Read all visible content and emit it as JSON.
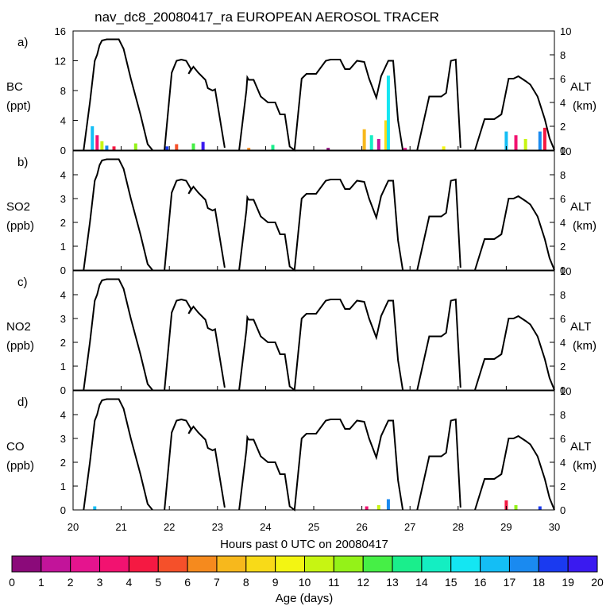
{
  "title": "nav_dc8_20080417_ra EUROPEAN AEROSOL TRACER",
  "chart_data": [
    {
      "type": "area",
      "panel_letter": "a)",
      "ylabel_left": [
        "BC",
        "(ppt)"
      ],
      "ylabel_right": [
        "ALT",
        "(km)"
      ],
      "ylim_left": [
        0,
        16
      ],
      "yticks_left": [
        0,
        4,
        8,
        12,
        16
      ],
      "tracer_values": [
        [
          20.4,
          3.2
        ],
        [
          20.5,
          2.0
        ],
        [
          20.6,
          1.2
        ],
        [
          20.7,
          0.6
        ],
        [
          20.85,
          0.5
        ],
        [
          21.3,
          0.9
        ],
        [
          21.95,
          0.5
        ],
        [
          22.15,
          0.8
        ],
        [
          22.5,
          0.9
        ],
        [
          22.7,
          1.1
        ],
        [
          23.65,
          0.3
        ],
        [
          24.15,
          0.7
        ],
        [
          25.3,
          0.3
        ],
        [
          26.05,
          2.8
        ],
        [
          26.2,
          2.0
        ],
        [
          26.35,
          1.5
        ],
        [
          26.5,
          4.0
        ],
        [
          26.55,
          10.0
        ],
        [
          26.9,
          0.3
        ],
        [
          27.7,
          0.5
        ],
        [
          29.0,
          2.5
        ],
        [
          29.2,
          2.0
        ],
        [
          29.4,
          1.5
        ],
        [
          29.7,
          2.5
        ],
        [
          29.8,
          3.0
        ]
      ]
    },
    {
      "type": "area",
      "panel_letter": "b)",
      "ylabel_left": [
        "SO2",
        "(ppb)"
      ],
      "ylabel_right": [
        "ALT",
        "(km)"
      ],
      "ylim_left": [
        0,
        5
      ],
      "yticks_left": [
        0,
        1,
        2,
        3,
        4
      ],
      "tracer_values": []
    },
    {
      "type": "area",
      "panel_letter": "c)",
      "ylabel_left": [
        "NO2",
        "(ppb)"
      ],
      "ylabel_right": [
        "ALT",
        "(km)"
      ],
      "ylim_left": [
        0,
        5
      ],
      "yticks_left": [
        0,
        1,
        2,
        3,
        4
      ],
      "tracer_values": []
    },
    {
      "type": "area",
      "panel_letter": "d)",
      "ylabel_left": [
        "CO",
        "(ppb)"
      ],
      "ylabel_right": [
        "ALT",
        "(km)"
      ],
      "ylim_left": [
        0,
        5
      ],
      "yticks_left": [
        0,
        1,
        2,
        3,
        4
      ],
      "tracer_values": [
        [
          20.45,
          0.15
        ],
        [
          26.1,
          0.15
        ],
        [
          26.35,
          0.2
        ],
        [
          26.55,
          0.45
        ],
        [
          29.0,
          0.4
        ],
        [
          29.2,
          0.2
        ],
        [
          29.7,
          0.15
        ]
      ]
    }
  ],
  "altitude": {
    "ylim": [
      0,
      10
    ],
    "yticks": [
      0,
      2,
      4,
      6,
      8,
      10
    ],
    "x": [
      20.0,
      20.22,
      20.35,
      20.45,
      20.5,
      20.55,
      20.6,
      20.7,
      20.95,
      21.05,
      21.2,
      21.4,
      21.55,
      21.65,
      21.8,
      21.9,
      22.05,
      22.15,
      22.25,
      22.35,
      22.45,
      22.4,
      22.5,
      22.6,
      22.75,
      22.8,
      22.9,
      22.95,
      23.15,
      23.3,
      23.45,
      23.6,
      23.62,
      23.65,
      23.75,
      23.9,
      24.05,
      24.2,
      24.3,
      24.4,
      24.5,
      24.6,
      24.75,
      24.85,
      25.05,
      25.25,
      25.35,
      25.55,
      25.65,
      25.75,
      25.9,
      26.05,
      26.15,
      26.3,
      26.4,
      26.55,
      26.65,
      26.75,
      26.85,
      26.95,
      27.15,
      27.4,
      27.65,
      27.75,
      27.85,
      27.95,
      28.05,
      28.15,
      28.35,
      28.55,
      28.75,
      28.9,
      29.05,
      29.15,
      29.25,
      29.4,
      29.5,
      29.65,
      29.8,
      29.9,
      30.0
    ],
    "y": [
      null,
      0,
      4,
      7.5,
      8,
      8.8,
      9.2,
      9.3,
      9.3,
      8.5,
      6,
      3,
      0.5,
      0,
      null,
      0,
      6.5,
      7.5,
      7.6,
      7.5,
      6.8,
      6.4,
      7,
      6.5,
      5.9,
      5.2,
      5.0,
      5.1,
      0.2,
      null,
      0,
      5,
      6.1,
      5.9,
      5.9,
      4.5,
      4.0,
      4.0,
      3.0,
      3.0,
      0.3,
      0,
      6.0,
      6.4,
      6.4,
      7.5,
      7.6,
      7.6,
      6.8,
      6.8,
      7.5,
      7.4,
      6.0,
      4.4,
      6.2,
      7.5,
      7.5,
      2.5,
      0,
      null,
      0,
      4.5,
      4.5,
      4.8,
      7.5,
      7.6,
      0.2,
      null,
      0,
      2.6,
      2.6,
      3.0,
      6.0,
      6.0,
      6.2,
      5.8,
      5.5,
      4.5,
      2.6,
      1.0,
      0
    ]
  },
  "xaxis": {
    "xlim": [
      20,
      30
    ],
    "ticks": [
      20,
      21,
      22,
      23,
      24,
      25,
      26,
      27,
      28,
      29,
      30
    ],
    "label": "Hours past 0 UTC on 20080417"
  },
  "colorbar": {
    "label": "Age (days)",
    "ticks": [
      0,
      1,
      2,
      3,
      4,
      5,
      6,
      7,
      8,
      9,
      10,
      11,
      12,
      13,
      14,
      15,
      16,
      17,
      18,
      19,
      20
    ],
    "colors": [
      "#8B0A7A",
      "#C2149A",
      "#E5148E",
      "#F21270",
      "#F51942",
      "#F5502A",
      "#F58A1E",
      "#F7B81C",
      "#F8DA18",
      "#F3F512",
      "#C7F512",
      "#94F218",
      "#46EF46",
      "#1AEE8C",
      "#14EEC2",
      "#14E6F2",
      "#14BEF5",
      "#1A8AF0",
      "#1A3AF0",
      "#3A1AF0"
    ]
  }
}
